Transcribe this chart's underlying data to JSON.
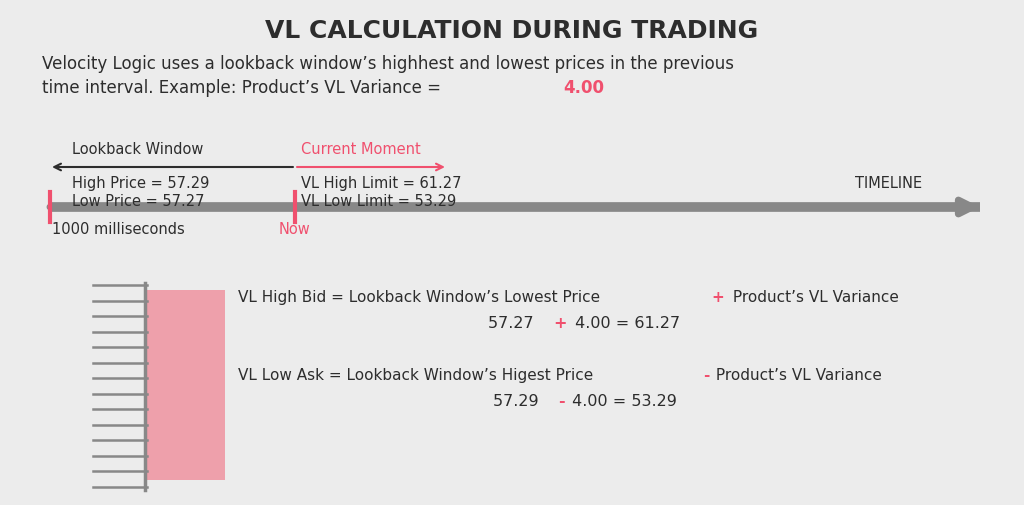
{
  "title": "VL CALCULATION DURING TRADING",
  "title_fontsize": 18,
  "title_fontweight": "bold",
  "subtitle_line1": "Velocity Logic uses a lookback window’s highhest and lowest prices in the previous",
  "subtitle_line2": "time interval. Example: Product’s VL Variance = ",
  "subtitle_variance": "4.00",
  "subtitle_fontsize": 12,
  "bg_color": "#ececec",
  "dark_text": "#2d2d2d",
  "pink_color": "#f0506e",
  "gray_color": "#888888",
  "lookback_label": "Lookback Window",
  "current_moment_label": "Current Moment",
  "high_price_label": "High Price = 57.29",
  "low_price_label": "Low Price = 57.27",
  "vl_high_limit_label": "VL High Limit = 61.27",
  "vl_low_limit_label": "VL Low Limit = 53.29",
  "milliseconds_label": "1000 milliseconds",
  "now_label": "Now",
  "timeline_label": "TIMELINE",
  "vl_high_bid_pre": "VL High Bid = Lookback Window’s Lowest Price ",
  "vl_high_bid_op": "+",
  "vl_high_bid_post": " Product’s VL Variance",
  "vl_high_bid_num_pre": "57.27 ",
  "vl_high_bid_num_op": "+",
  "vl_high_bid_num_post": " 4.00 = 61.27",
  "vl_low_ask_pre": "VL Low Ask = Lookback Window’s Higest Price ",
  "vl_low_ask_op": "-",
  "vl_low_ask_post": " Product’s VL Variance",
  "vl_low_ask_num_pre": "57.29 ",
  "vl_low_ask_num_op": "-",
  "vl_low_ask_num_post": " 4.00 = 53.29",
  "fig_width": 10.24,
  "fig_height": 5.06,
  "dpi": 100
}
